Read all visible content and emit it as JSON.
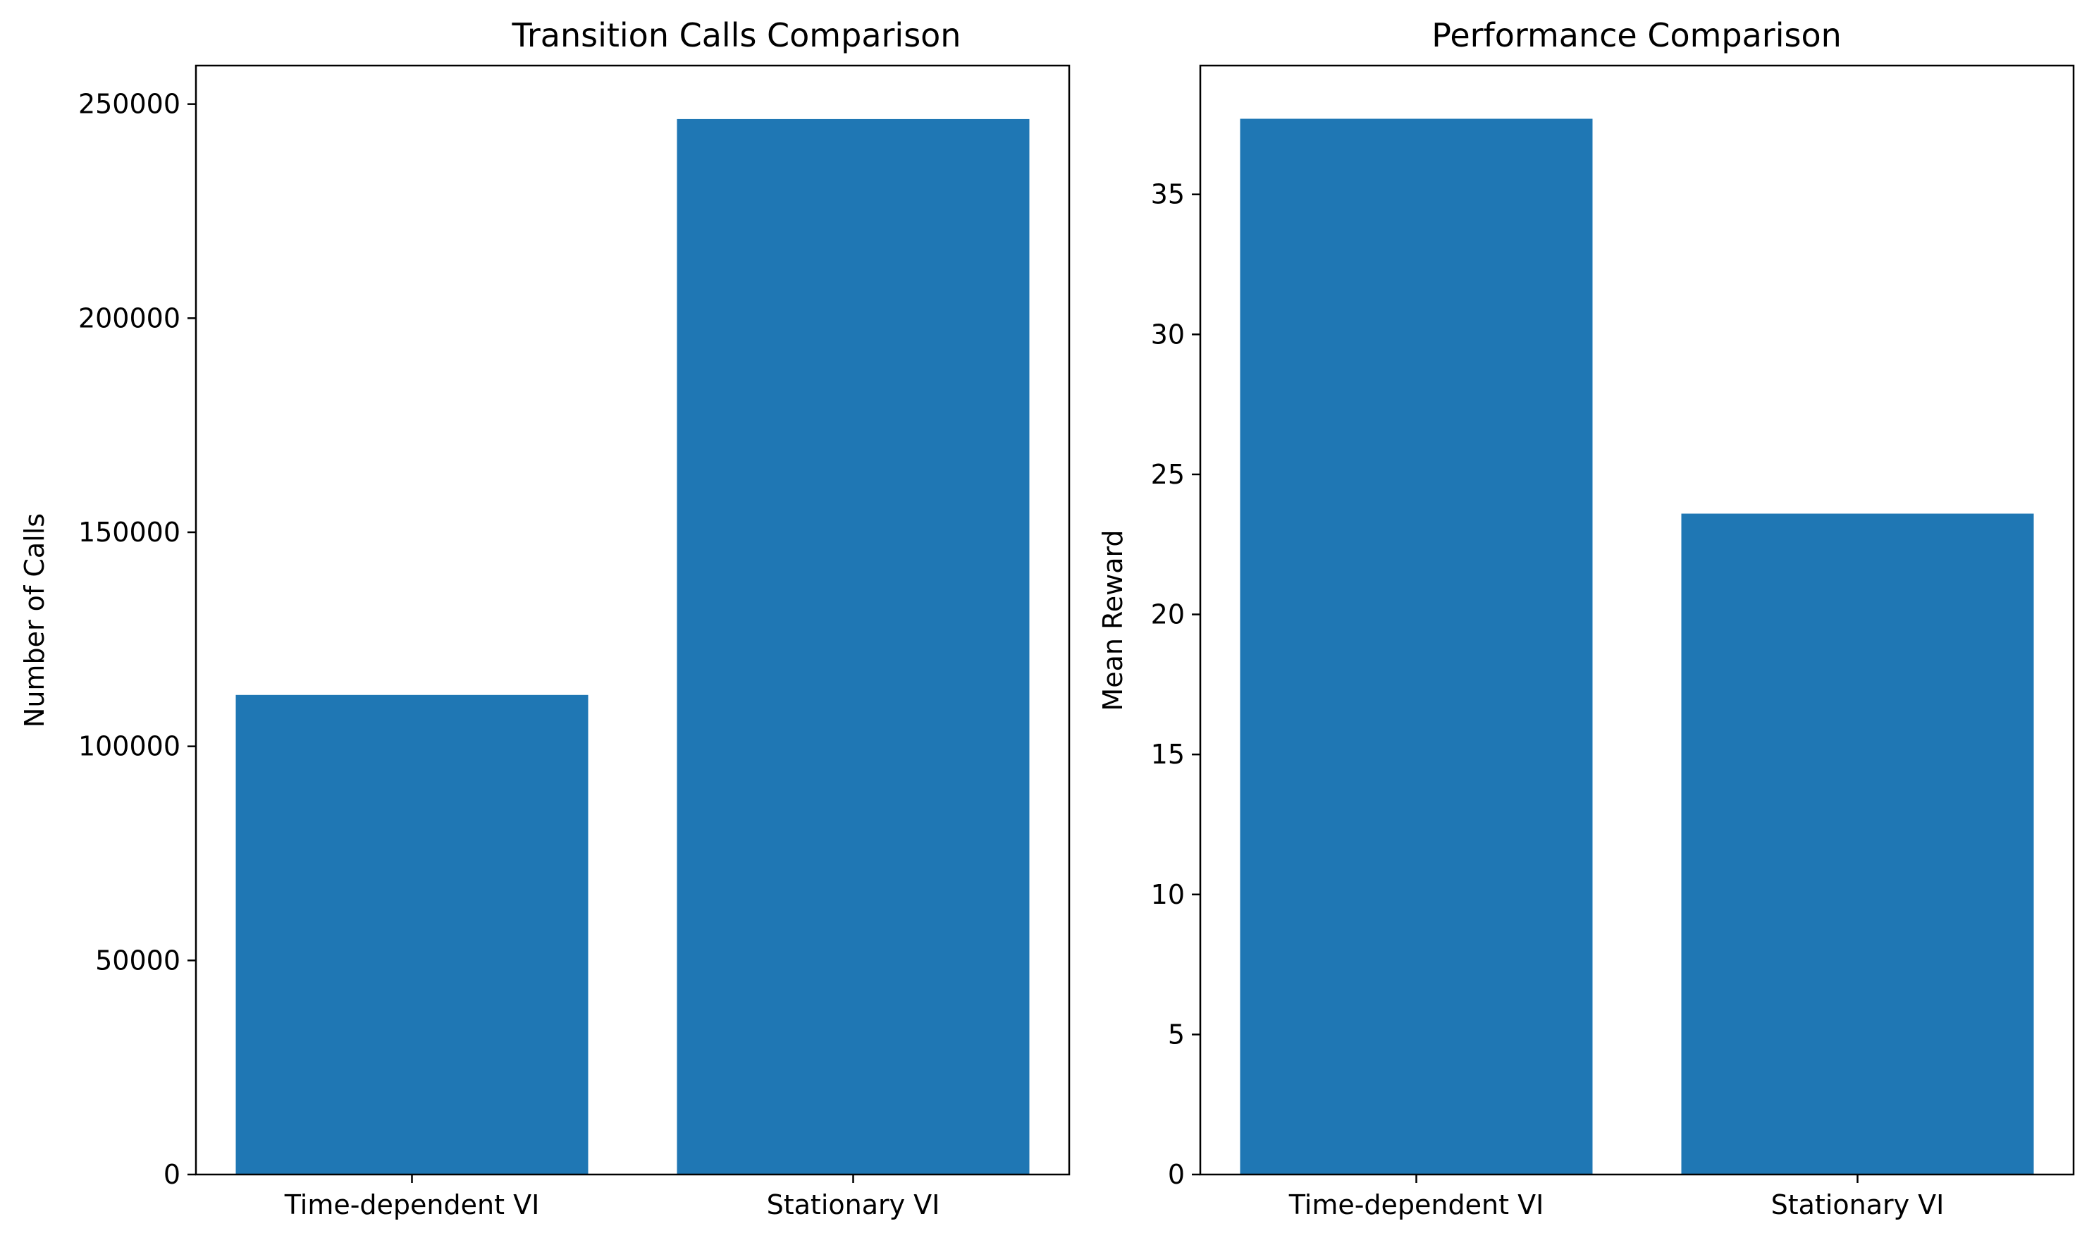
{
  "chart_data": [
    {
      "type": "bar",
      "title": "Transition Calls Comparison",
      "xlabel": "",
      "ylabel": "Number of Calls",
      "categories": [
        "Time-dependent VI",
        "Stationary VI"
      ],
      "values": [
        112000,
        246500
      ],
      "ylim": [
        0,
        259000
      ],
      "yticks": [
        0,
        50000,
        100000,
        150000,
        200000,
        250000
      ],
      "ytick_labels": [
        "0",
        "50000",
        "100000",
        "150000",
        "200000",
        "250000"
      ],
      "bar_color": "#1f77b4",
      "grid": false,
      "legend": "none"
    },
    {
      "type": "bar",
      "title": "Performance Comparison",
      "xlabel": "",
      "ylabel": "Mean Reward",
      "categories": [
        "Time-dependent VI",
        "Stationary VI"
      ],
      "values": [
        37.7,
        23.6
      ],
      "ylim": [
        0,
        39.6
      ],
      "yticks": [
        0,
        5,
        10,
        15,
        20,
        25,
        30,
        35
      ],
      "ytick_labels": [
        "0",
        "5",
        "10",
        "15",
        "20",
        "25",
        "30",
        "35"
      ],
      "bar_color": "#1f77b4",
      "grid": false,
      "legend": "none"
    }
  ]
}
